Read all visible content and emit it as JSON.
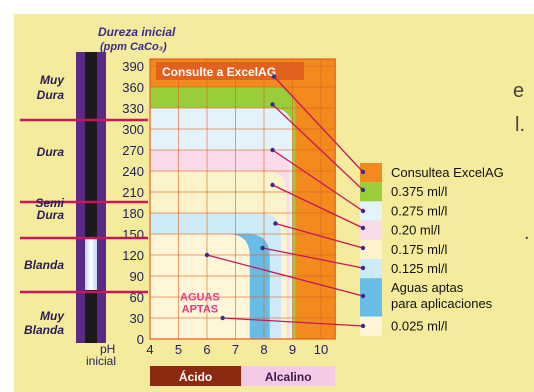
{
  "edge_text": {
    "partial_e": "e",
    "partial_l": "l.",
    "partial_dot": "."
  },
  "chart_data": {
    "type": "area",
    "title_line1": "Dureza inicial",
    "title_line2": "(ppm  CaCo₃)",
    "x_axis_label": [
      "pH",
      "inicial"
    ],
    "x_ticks": [
      4,
      5,
      6,
      7,
      8,
      9,
      10
    ],
    "y_ticks": [
      0,
      30,
      60,
      90,
      120,
      150,
      180,
      210,
      240,
      270,
      300,
      330,
      360,
      390
    ],
    "ylim": [
      0,
      400
    ],
    "xlim": [
      4,
      10.5
    ],
    "hardness_scale": [
      "Muy Dura",
      "Dura",
      "Semi Dura",
      "Blanda",
      "Muy Blanda"
    ],
    "ph_bands": [
      {
        "label": "Ácido",
        "from": 4,
        "to": 7.2,
        "color": "#8b2a10"
      },
      {
        "label": "Alcalino",
        "from": 7.2,
        "to": 10.5,
        "color": "#f6c9e6"
      }
    ],
    "zones": [
      {
        "name": "Consultea ExcelAG",
        "top": 400,
        "ph_limit": 10.5,
        "color": "#f28a1e"
      },
      {
        "name": "0.375 ml/l",
        "top": 360,
        "ph_limit": 9.1,
        "color": "#9acd3a"
      },
      {
        "name": "0.275 ml/l",
        "top": 330,
        "ph_limit": 9.0,
        "color": "#e4f3fb"
      },
      {
        "name": "0.20 ml/l",
        "top": 270,
        "ph_limit": 8.9,
        "color": "#fadbe9"
      },
      {
        "name": "0.175 ml/l",
        "top": 240,
        "ph_limit": 8.8,
        "color": "#fbf3c9"
      },
      {
        "name": "0.125 ml/l",
        "top": 180,
        "ph_limit": 8.6,
        "color": "#cdebf6"
      },
      {
        "name": "Aguas aptas para aplicaciones",
        "top": 150,
        "ph_limit": 8.2,
        "color": "#67bde6"
      },
      {
        "name": "0.025 ml/l",
        "top": 150,
        "ph_limit": 7.5,
        "color": "#fff6d8"
      }
    ],
    "inner_label": "Consulte a ExcelAG",
    "aguas_label": [
      "AGUAS",
      "APTAS"
    ],
    "legend": [
      {
        "label": "Consultea ExcelAG",
        "color": "#f28a1e"
      },
      {
        "label": "0.375 ml/l",
        "color": "#9acd3a"
      },
      {
        "label": "0.275 ml/l",
        "color": "#e4f3fb"
      },
      {
        "label": "0.20   ml/l",
        "color": "#fadbe9"
      },
      {
        "label": "0.175 ml/l",
        "color": "#fbf3c9"
      },
      {
        "label": "0.125 ml/l",
        "color": "#cdebf6"
      },
      {
        "label": "Aguas aptas",
        "label2": "para aplicaciones",
        "color": "#67bde6"
      },
      {
        "label": "0.025 ml/l",
        "color": "#fff6d8"
      }
    ],
    "pointer_points": [
      {
        "ph": 8.35,
        "hardness": 375
      },
      {
        "ph": 8.3,
        "hardness": 335
      },
      {
        "ph": 8.3,
        "hardness": 270
      },
      {
        "ph": 8.3,
        "hardness": 220
      },
      {
        "ph": 8.4,
        "hardness": 165
      },
      {
        "ph": 7.95,
        "hardness": 130
      },
      {
        "ph": 6.0,
        "hardness": 120
      },
      {
        "ph": 6.55,
        "hardness": 30
      }
    ],
    "colors": {
      "panel": "#f4ec9c",
      "purple": "#5a2a86",
      "dark": "#1b1b1b",
      "magenta": "#c8165a",
      "grid": "#e3611e",
      "axis_text": "#1f1f5e"
    }
  }
}
